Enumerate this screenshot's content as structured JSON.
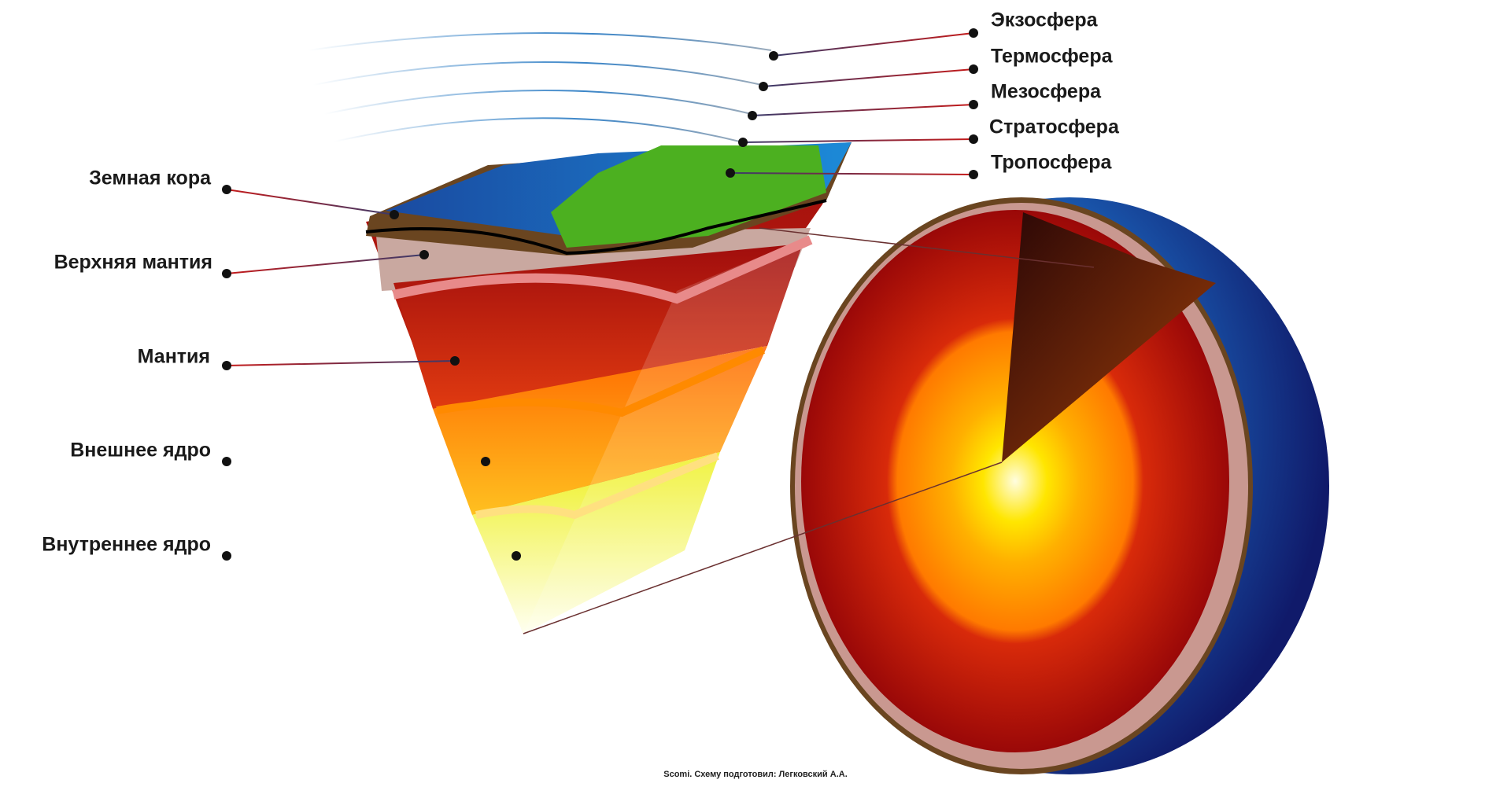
{
  "atmosphere_labels": [
    "Экзосфера",
    "Термосфера",
    "Мезосфера",
    "Стратосфера",
    "Тропосфера"
  ],
  "earth_labels": [
    "Земная кора",
    "Верхняя мантия",
    "Мантия",
    "Внешнее ядро",
    "Внутреннее ядро"
  ],
  "credit": "Scomi. Схему подготовил: Легковский А.А."
}
